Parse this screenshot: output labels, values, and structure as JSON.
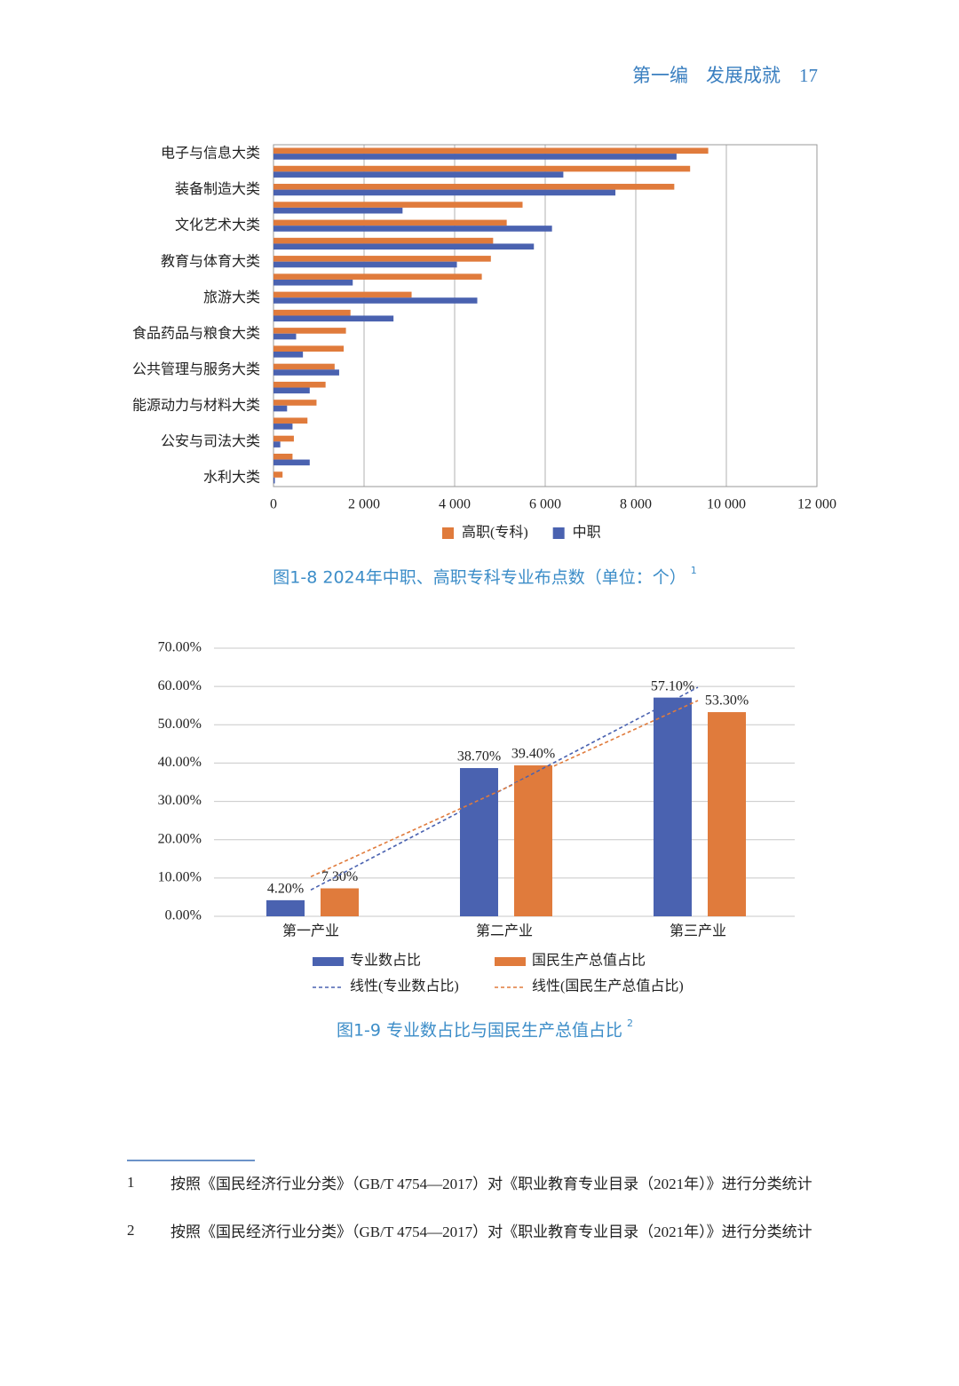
{
  "header": {
    "section": "第一编",
    "title": "发展成就",
    "page": "17"
  },
  "chart_data": [
    {
      "type": "bar",
      "orientation": "horizontal",
      "caption": "图1-8  2024年中职、高职专科专业布点数（单位：个）",
      "caption_note": "1",
      "categories": [
        "电子与信息大类",
        null,
        "装备制造大类",
        null,
        "文化艺术大类",
        null,
        "教育与体育大类",
        null,
        "旅游大类",
        null,
        "食品药品与粮食大类",
        null,
        "公共管理与服务大类",
        null,
        "能源动力与材料大类",
        null,
        "公安与司法大类",
        null,
        "水利大类"
      ],
      "series": [
        {
          "name": "高职(专科)",
          "color": "#e07b3c",
          "values": [
            9600,
            9200,
            8850,
            5500,
            5150,
            4850,
            4800,
            4600,
            3050,
            1700,
            1600,
            1550,
            1350,
            1150,
            950,
            750,
            450,
            420,
            200
          ]
        },
        {
          "name": "中职",
          "color": "#4a62b0",
          "values": [
            8900,
            6400,
            7550,
            2850,
            6150,
            5750,
            4050,
            1750,
            4500,
            2650,
            500,
            650,
            1450,
            800,
            300,
            420,
            150,
            800,
            30
          ]
        }
      ],
      "xlim": [
        0,
        12000
      ],
      "xticks": [
        0,
        {
          "value": 2000,
          "label": "2 000"
        },
        {
          "value": 4000,
          "label": "4 000"
        },
        {
          "value": 6000,
          "label": "6 000"
        },
        {
          "value": 8000,
          "label": "8 000"
        },
        {
          "value": 10000,
          "label": "10 000"
        },
        {
          "value": 12000,
          "label": "12 000"
        }
      ],
      "grid": true,
      "legend": "bottom"
    },
    {
      "type": "bar",
      "orientation": "vertical",
      "caption": "图1-9  专业数占比与国民生产总值占比",
      "caption_note": "2",
      "categories": [
        "第一产业",
        "第二产业",
        "第三产业"
      ],
      "series": [
        {
          "name": "专业数占比",
          "color": "#4a62b0",
          "values": [
            4.2,
            38.7,
            57.1
          ],
          "value_labels": [
            "4.20%",
            "38.70%",
            "57.10%"
          ],
          "trendline": "线性(专业数占比)"
        },
        {
          "name": "国民生产总值占比",
          "color": "#e07b3c",
          "values": [
            7.3,
            39.4,
            53.3
          ],
          "value_labels": [
            "7.30%",
            "39.40%",
            "53.30%"
          ],
          "trendline": "线性(国民生产总值占比)"
        }
      ],
      "ylim": [
        0,
        70
      ],
      "yticks": [
        {
          "value": 0,
          "label": "0.00%"
        },
        {
          "value": 10,
          "label": "10.00%"
        },
        {
          "value": 20,
          "label": "20.00%"
        },
        {
          "value": 30,
          "label": "30.00%"
        },
        {
          "value": 40,
          "label": "40.00%"
        },
        {
          "value": 50,
          "label": "50.00%"
        },
        {
          "value": 60,
          "label": "60.00%"
        },
        {
          "value": 70,
          "label": "70.00%"
        }
      ],
      "grid": true,
      "legend": "bottom"
    }
  ],
  "footnotes": [
    {
      "number": "1",
      "text": "按照《国民经济行业分类》（GB/T 4754—2017）对《职业教育专业目录（2021年）》进行分类统计"
    },
    {
      "number": "2",
      "text": "按照《国民经济行业分类》（GB/T 4754—2017）对《职业教育专业目录（2021年）》进行分类统计"
    }
  ]
}
